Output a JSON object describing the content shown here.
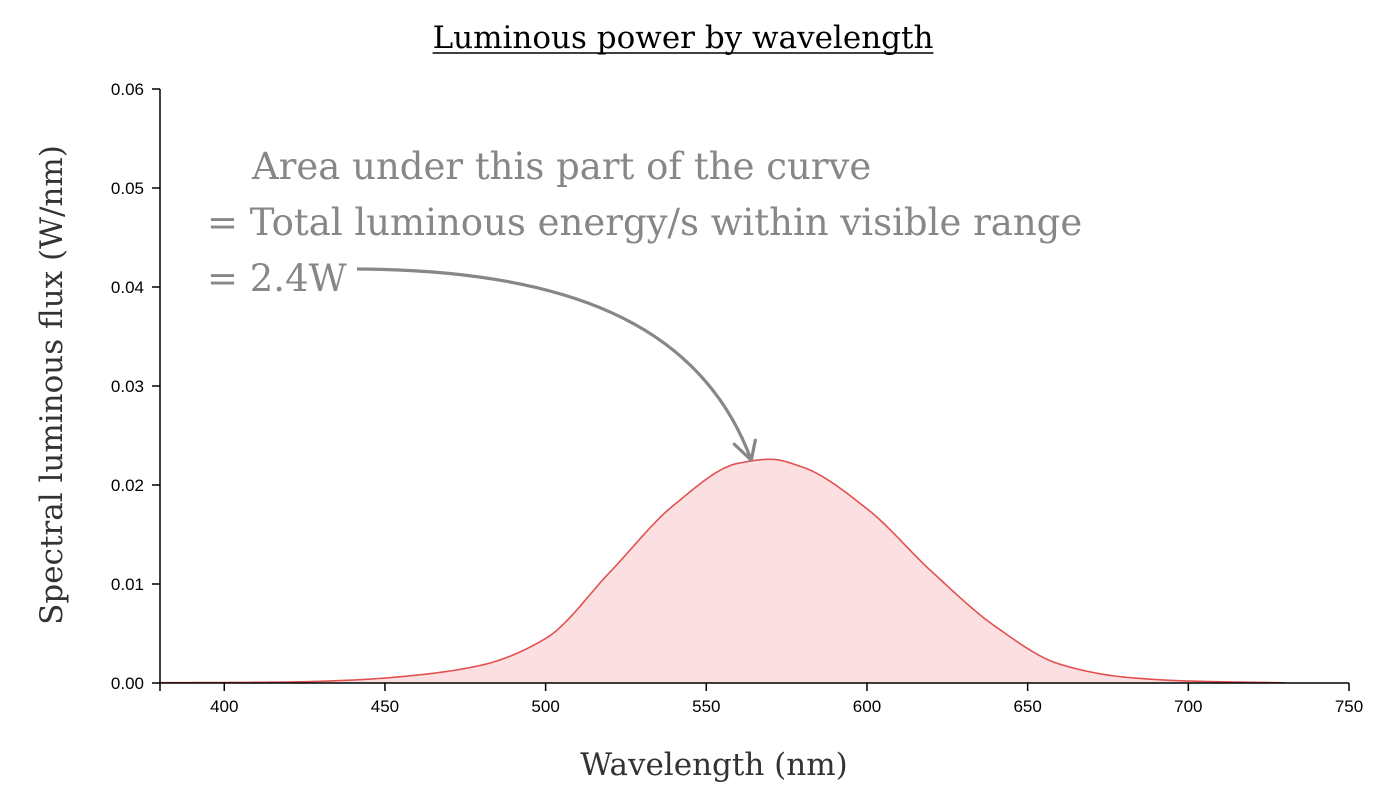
{
  "chart_data": {
    "type": "area",
    "title": "Luminous power by wavelength",
    "xlabel": "Wavelength (nm)",
    "ylabel": "Spectral luminous flux (W/nm)",
    "xlim": [
      380,
      750
    ],
    "ylim": [
      0,
      0.06
    ],
    "xticks": [
      400,
      450,
      500,
      550,
      600,
      650,
      700,
      750
    ],
    "yticks": [
      0.0,
      0.01,
      0.02,
      0.03,
      0.04,
      0.05,
      0.06
    ],
    "ytick_labels": [
      "0.00",
      "0.01",
      "0.02",
      "0.03",
      "0.04",
      "0.05",
      "0.06"
    ],
    "grid": false,
    "series": [
      {
        "name": "Spectral luminous flux",
        "color": "#e05252",
        "fill": "#fcdfe1",
        "x": [
          380,
          400,
          420,
          440,
          460,
          480,
          500,
          520,
          540,
          560,
          570,
          580,
          600,
          620,
          640,
          660,
          680,
          700,
          730
        ],
        "values": [
          3e-05,
          5e-05,
          0.0001,
          0.0003,
          0.0008,
          0.0018,
          0.0045,
          0.0112,
          0.018,
          0.0222,
          0.0226,
          0.0218,
          0.0176,
          0.0113,
          0.0057,
          0.0019,
          0.0006,
          0.0002,
          2e-05
        ]
      }
    ],
    "annotation": {
      "lines": [
        "Area under this part of the curve",
        "= Total luminous energy/s within visible range",
        "= 2.4W"
      ],
      "color": "#878787",
      "arrow_target": [
        564,
        0.0225
      ]
    }
  }
}
